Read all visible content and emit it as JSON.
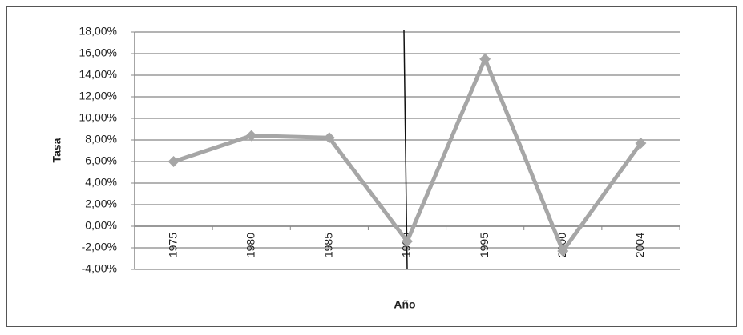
{
  "chart_data": {
    "type": "line",
    "x_label": "Año",
    "y_label": "Tasa",
    "categories": [
      "1975",
      "1980",
      "1985",
      "1990",
      "1995",
      "2000",
      "2004"
    ],
    "series": [
      {
        "color": "#a6a6a6",
        "values": [
          6.0,
          8.4,
          8.2,
          -1.4,
          15.5,
          -2.3,
          7.7
        ]
      }
    ],
    "ylim": [
      -4,
      18
    ],
    "yticks": [
      {
        "value": -4,
        "label": "-4,00%"
      },
      {
        "value": -2,
        "label": "-2,00%"
      },
      {
        "value": 0,
        "label": "0,00%"
      },
      {
        "value": 2,
        "label": "2,00%"
      },
      {
        "value": 4,
        "label": "4,00%"
      },
      {
        "value": 6,
        "label": "6,00%"
      },
      {
        "value": 8,
        "label": "8,00%"
      },
      {
        "value": 10,
        "label": "10,00%"
      },
      {
        "value": 12,
        "label": "12,00%"
      },
      {
        "value": 14,
        "label": "14,00%"
      },
      {
        "value": 16,
        "label": "16,00%"
      },
      {
        "value": 18,
        "label": "18,00%"
      }
    ],
    "grid": true
  }
}
